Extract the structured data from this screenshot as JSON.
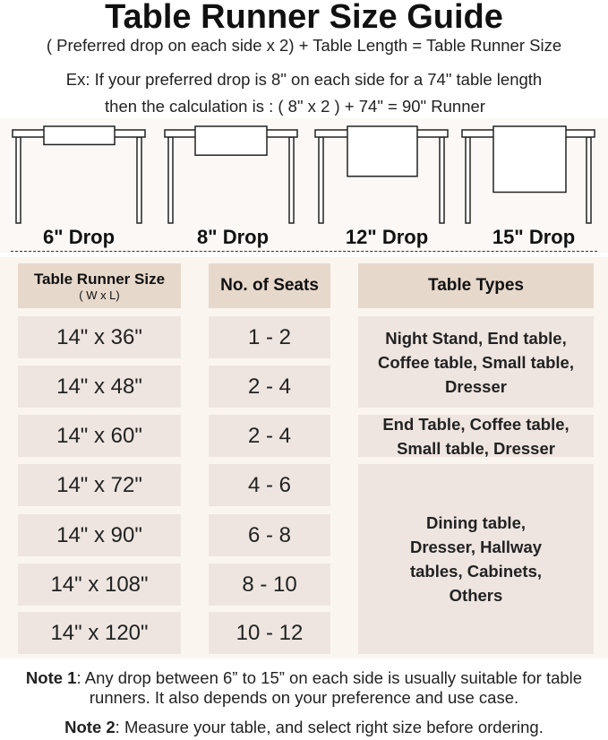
{
  "title": "Table Runner Size Guide",
  "formula": "( Preferred drop on each side x 2) + Table Length = Table Runner Size",
  "example_line1": "Ex: If your preferred drop is 8\" on each side for a 74\" table length",
  "example_line2": "then the calculation is : ( 8\" x 2 ) + 74\" = 90\" Runner",
  "drops": [
    {
      "label": "6\" Drop",
      "inches": 6
    },
    {
      "label": "8\" Drop",
      "inches": 8
    },
    {
      "label": "12\" Drop",
      "inches": 12
    },
    {
      "label": "15\" Drop",
      "inches": 15
    }
  ],
  "table": {
    "headers": {
      "size": "Table Runner Size",
      "size_sub": "( W x L)",
      "seats": "No. of Seats",
      "types": "Table Types"
    },
    "rows": [
      {
        "size": "14\" x 36\"",
        "seats": "1 - 2"
      },
      {
        "size": "14\" x 48\"",
        "seats": "2 - 4"
      },
      {
        "size": "14\" x 60\"",
        "seats": "2 - 4"
      },
      {
        "size": "14\" x 72\"",
        "seats": "4 - 6"
      },
      {
        "size": "14\" x 90\"",
        "seats": "6 - 8"
      },
      {
        "size": "14\" x 108\"",
        "seats": "8 - 10"
      },
      {
        "size": "14\" x 120\"",
        "seats": "10 - 12"
      }
    ],
    "types": [
      "Night Stand, End table, Coffee table, Small table, Dresser",
      "End Table, Coffee table, Small table, Dresser",
      "Dining table, Dresser, Hallway tables, Cabinets, Others"
    ]
  },
  "notes": [
    {
      "label": "Note 1",
      "text": ": Any drop between 6” to 15” on each side is usually suitable for table runners. It also depends on your preference and use case."
    },
    {
      "label": "Note 2",
      "text": ": Measure your table, and select right size before ordering."
    }
  ],
  "colors": {
    "header_cell": "#e6d8cb",
    "body_cell": "#eee5e0",
    "panel": "#fbf5f0"
  }
}
